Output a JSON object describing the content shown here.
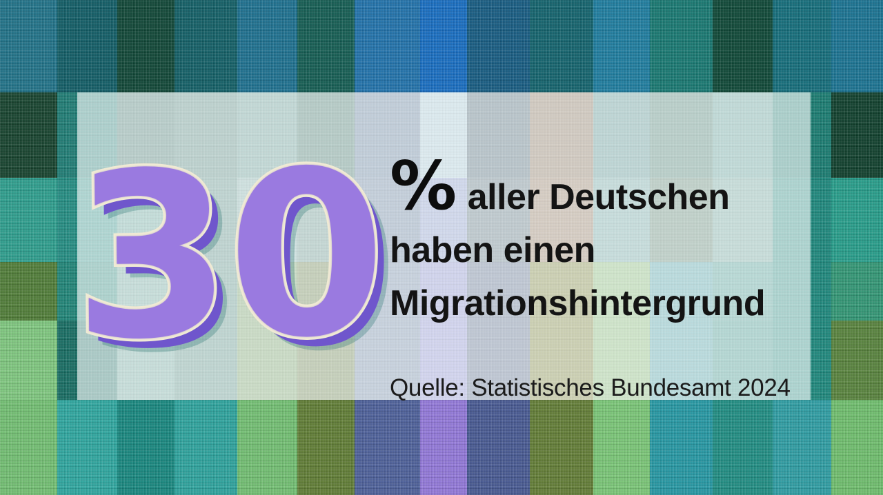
{
  "statistic": {
    "value": "30",
    "unit": "%",
    "headline_line1": "aller Deutschen",
    "headline_line2": "haben einen",
    "headline_line3": "Migrationshintergrund",
    "source": "Quelle: Statistisches Bundesamt 2024"
  },
  "colors": {
    "number_fill": "#9a7ae0",
    "number_outline": "#f0ead4",
    "number_shadow": "#6f56cc",
    "headline_text": "#141414",
    "panel": "rgba(255,255,255,0.62)"
  },
  "background": {
    "column_edges": [
      0,
      83,
      170,
      253,
      344,
      431,
      514,
      609,
      677,
      768,
      860,
      942,
      1033,
      1120,
      1205,
      1280
    ],
    "row_edges": [
      0,
      134,
      258,
      380,
      465,
      580,
      718
    ],
    "cell_colors": [
      [
        "#1d6f85",
        "#0e5a63",
        "#0d4434",
        "#0f5c63",
        "#1a6d8c",
        "#115a50",
        "#1e6fa8",
        "#156abe",
        "#14597f",
        "#10606a",
        "#1b7a9c",
        "#15756e",
        "#0b4534",
        "#116a78",
        "#17708f"
      ],
      [
        "#14402b",
        "#1c7a72",
        "#3a7369",
        "#477f76",
        "#56928a",
        "#346e61",
        "#537494",
        "#9bc2d0",
        "#3b5c6b",
        "#7d6a52",
        "#4a8a88",
        "#3d7869",
        "#519790",
        "#17796e",
        "#0d3d2a"
      ],
      [
        "#2a9b8a",
        "#218a80",
        "#5a9e94",
        "#4d867e",
        "#77a8a4",
        "#5c8e86",
        "#5a7898",
        "#7e93c7",
        "#4e6a77",
        "#8a7258",
        "#629e9c",
        "#517e6a",
        "#649f96",
        "#1b857a",
        "#239a87"
      ],
      [
        "#4d7a35",
        "#1d8275",
        "#62a096",
        "#4d887e",
        "#6a9a5e",
        "#5f7a42",
        "#6480a0",
        "#7d86c9",
        "#4c6384",
        "#6f7a2c",
        "#78b36a",
        "#3f9aa0",
        "#3a948a",
        "#1b857a",
        "#2f9472"
      ],
      [
        "#7cc47c",
        "#156a60",
        "#62a096",
        "#4d887e",
        "#6a9a5e",
        "#5f7a42",
        "#6480a0",
        "#8087cd",
        "#4c6384",
        "#6f7a2c",
        "#78b36a",
        "#3f9aa0",
        "#2f8e84",
        "#1b857a",
        "#55803a"
      ],
      [
        "#6fbc6f",
        "#2ba39c",
        "#15847c",
        "#2aa09a",
        "#6fbc6f",
        "#5d7a32",
        "#4a5d97",
        "#8f75d6",
        "#44568f",
        "#5f7a33",
        "#77c374",
        "#2295a0",
        "#1d8a80",
        "#2b9aa0",
        "#6cbb6a"
      ]
    ]
  }
}
